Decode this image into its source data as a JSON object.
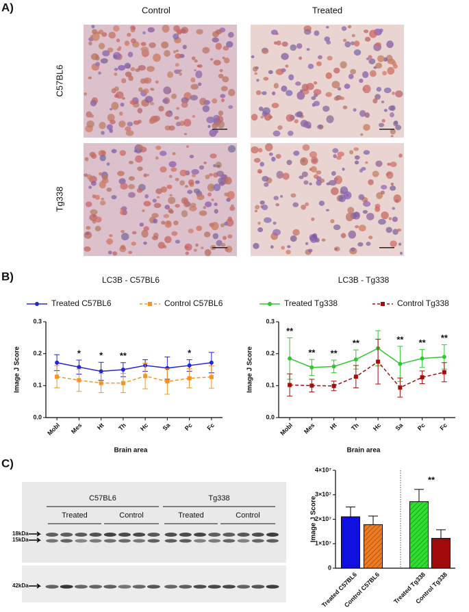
{
  "panel_labels": [
    "A)",
    "B)",
    "C)"
  ],
  "micrographs": {
    "columns": [
      "Control",
      "Treated"
    ],
    "rows": [
      "C57BL6",
      "Tg338"
    ]
  },
  "blot": {
    "strains": [
      "C57BL6",
      "Tg338"
    ],
    "groups": [
      "Treated",
      "Control",
      "Treated",
      "Control"
    ],
    "markers": [
      "18kDa",
      "15kDa",
      "42kDa"
    ]
  },
  "chart_data": [
    {
      "type": "line",
      "title": "LC3B - C57BL6",
      "xlabel": "Brain area",
      "ylabel": "Image J Score",
      "categories": [
        "Mobl",
        "Mes",
        "Ht",
        "Th",
        "Hc",
        "Sa",
        "Pc",
        "Fc"
      ],
      "series": [
        {
          "name": "Treated C57BL6",
          "color": "#2323d8",
          "style": "solid",
          "marker": "circle",
          "values": [
            0.172,
            0.158,
            0.145,
            0.15,
            0.163,
            0.155,
            0.163,
            0.172
          ],
          "errors": [
            0.025,
            0.022,
            0.028,
            0.022,
            0.018,
            0.035,
            0.018,
            0.032
          ]
        },
        {
          "name": "Control C57BL6",
          "color": "#f7931e",
          "style": "dashed",
          "marker": "square",
          "values": [
            0.128,
            0.117,
            0.108,
            0.108,
            0.13,
            0.113,
            0.123,
            0.127
          ],
          "errors": [
            0.035,
            0.035,
            0.03,
            0.03,
            0.04,
            0.04,
            0.03,
            0.035
          ]
        }
      ],
      "significance": [
        null,
        "*",
        "*",
        "**",
        null,
        null,
        "*",
        null
      ],
      "ylim": [
        0,
        0.3
      ],
      "yticks": [
        {
          "value": 0,
          "label": "0.0"
        },
        0.1,
        0.2,
        0.3
      ],
      "legend": "top"
    },
    {
      "type": "line",
      "title": "LC3B - Tg338",
      "xlabel": "Brain area",
      "ylabel": "Image J Score",
      "categories": [
        "Mobl",
        "Mes",
        "Ht",
        "Th",
        "Hc",
        "Sa",
        "Pc",
        "Fc"
      ],
      "series": [
        {
          "name": "Treated Tg338",
          "color": "#2ec82e",
          "style": "solid",
          "marker": "circle",
          "values": [
            0.185,
            0.157,
            0.16,
            0.182,
            0.217,
            0.168,
            0.185,
            0.19
          ],
          "errors": [
            0.065,
            0.025,
            0.02,
            0.03,
            0.055,
            0.055,
            0.028,
            0.038
          ]
        },
        {
          "name": "Control Tg338",
          "color": "#a50d0d",
          "style": "dashed",
          "marker": "square",
          "values": [
            0.102,
            0.1,
            0.099,
            0.128,
            0.175,
            0.094,
            0.126,
            0.142
          ],
          "errors": [
            0.035,
            0.02,
            0.015,
            0.035,
            0.07,
            0.03,
            0.02,
            0.03
          ]
        }
      ],
      "significance": [
        "**",
        "**",
        "**",
        "**",
        null,
        "**",
        "**",
        "**"
      ],
      "ylim": [
        0,
        0.3
      ],
      "yticks": [
        {
          "value": 0,
          "label": "0.0"
        },
        0.1,
        0.2,
        0.3
      ],
      "legend": "top"
    },
    {
      "type": "bar",
      "ylabel": "Image J Score",
      "categories": [
        "Treated C57BL6",
        "Control C57BL6",
        "Treated Tg338",
        "Control Tg338"
      ],
      "values": [
        21000000,
        17800000,
        27200000,
        12200000
      ],
      "errors": [
        4000000,
        3500000,
        5000000,
        3500000
      ],
      "colors": [
        "#1010e0",
        "#f07a1e",
        "#2ee02e",
        "#a00a0a"
      ],
      "hatched": [
        false,
        true,
        true,
        false
      ],
      "annotation": "**",
      "ylim": [
        0,
        40000000
      ],
      "yticks": [
        0,
        {
          "value": 10000000,
          "label": "1×10⁷"
        },
        {
          "value": 20000000,
          "label": "2×10⁷"
        },
        {
          "value": 30000000,
          "label": "3×10⁷"
        },
        {
          "value": 40000000,
          "label": "4×10⁷"
        }
      ]
    }
  ]
}
